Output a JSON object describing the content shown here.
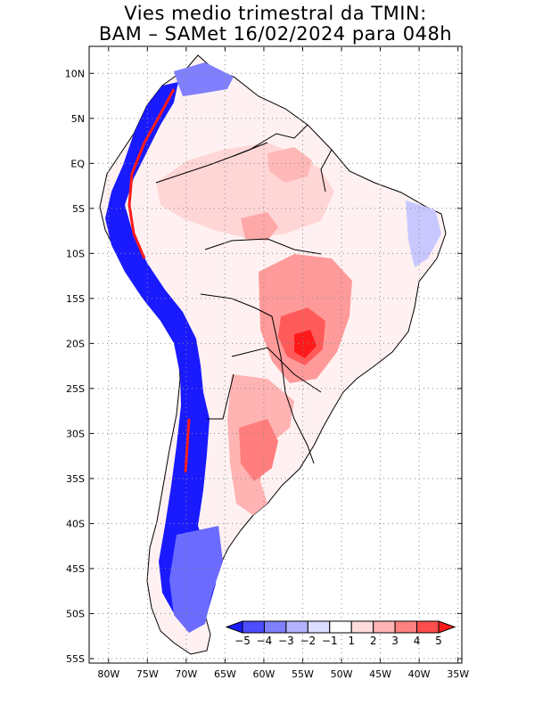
{
  "title": {
    "line1": "Vies medio trimestral da TMIN:",
    "line2": "BAM – SAMet 16/02/2024  para 048h"
  },
  "map": {
    "lat_labels": [
      "10N",
      "5N",
      "EQ",
      "5S",
      "10S",
      "15S",
      "20S",
      "25S",
      "30S",
      "35S",
      "40S",
      "45S",
      "50S",
      "55S"
    ],
    "lat_values": [
      10,
      5,
      0,
      -5,
      -10,
      -15,
      -20,
      -25,
      -30,
      -35,
      -40,
      -45,
      -50,
      -55
    ],
    "lon_labels": [
      "80W",
      "75W",
      "70W",
      "65W",
      "60W",
      "55W",
      "50W",
      "45W",
      "40W",
      "35W"
    ],
    "lon_values": [
      -80,
      -75,
      -70,
      -65,
      -60,
      -55,
      -50,
      -45,
      -40,
      -35
    ],
    "lat_range": [
      -55.5,
      13
    ],
    "lon_range": [
      -82.5,
      -34.5
    ],
    "grid": true,
    "grid_style": "dotted"
  },
  "colorbar": {
    "labels": [
      "−5",
      "−4",
      "−3",
      "−2",
      "−1",
      "1",
      "2",
      "3",
      "4",
      "5"
    ],
    "colors": [
      "#1a1aff",
      "#4d4dff",
      "#8080ff",
      "#b3b3ff",
      "#dcdcff",
      "#ffffff",
      "#ffdcdc",
      "#ffb3b3",
      "#ff8080",
      "#ff4d4d",
      "#ff1a1a"
    ]
  },
  "colors": {
    "cold_strong": "#0000ff",
    "cold_mid": "#6b6bff",
    "cold_light": "#c8c8ff",
    "warm_light": "#ffd9d9",
    "warm_mid": "#ff9a9a",
    "warm_strong": "#ff1a1a",
    "land_neutral": "#ffffff"
  }
}
